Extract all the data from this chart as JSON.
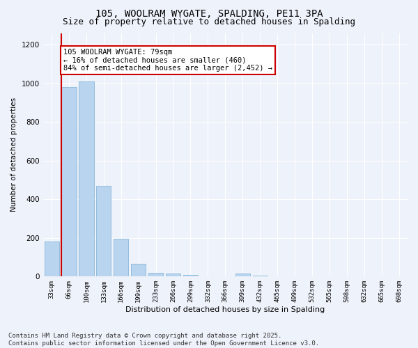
{
  "title_line1": "105, WOOLRAM WYGATE, SPALDING, PE11 3PA",
  "title_line2": "Size of property relative to detached houses in Spalding",
  "xlabel": "Distribution of detached houses by size in Spalding",
  "ylabel": "Number of detached properties",
  "categories": [
    "33sqm",
    "66sqm",
    "100sqm",
    "133sqm",
    "166sqm",
    "199sqm",
    "233sqm",
    "266sqm",
    "299sqm",
    "332sqm",
    "366sqm",
    "399sqm",
    "432sqm",
    "465sqm",
    "499sqm",
    "532sqm",
    "565sqm",
    "598sqm",
    "632sqm",
    "665sqm",
    "698sqm"
  ],
  "values": [
    180,
    980,
    1010,
    470,
    195,
    65,
    20,
    15,
    8,
    0,
    0,
    15,
    5,
    0,
    0,
    0,
    0,
    0,
    0,
    0,
    0
  ],
  "bar_color": "#b8d4ee",
  "bar_edge_color": "#7aaed4",
  "property_line_x": 0.575,
  "annotation_text": "105 WOOLRAM WYGATE: 79sqm\n← 16% of detached houses are smaller (460)\n84% of semi-detached houses are larger (2,452) →",
  "annotation_box_color": "#ffffff",
  "annotation_box_edge": "#cc0000",
  "vline_color": "#cc0000",
  "ylim": [
    0,
    1260
  ],
  "yticks": [
    0,
    200,
    400,
    600,
    800,
    1000,
    1200
  ],
  "background_color": "#eef2fa",
  "grid_color": "#ffffff",
  "footer_line1": "Contains HM Land Registry data © Crown copyright and database right 2025.",
  "footer_line2": "Contains public sector information licensed under the Open Government Licence v3.0.",
  "title_fontsize": 10,
  "subtitle_fontsize": 9,
  "annotation_fontsize": 7.5,
  "footer_fontsize": 6.5
}
